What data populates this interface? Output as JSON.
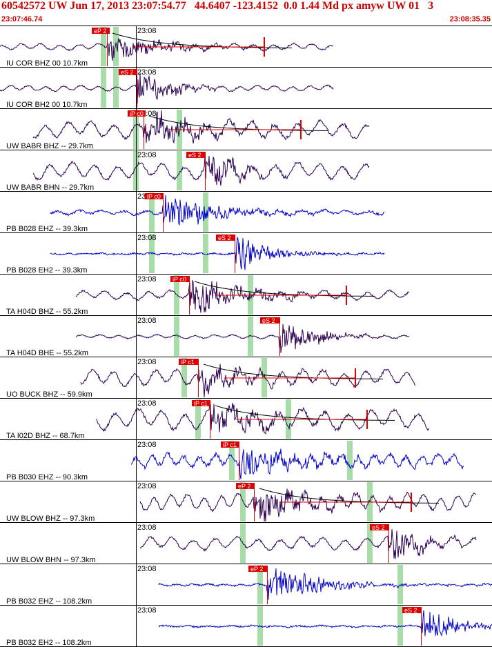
{
  "header": {
    "title": "60542572 UW Jun 17, 2013 23:07:54.77   44.6407 -123.4152  0.0 1.44 Md px amyw UW 01   3",
    "start_time": "23:07:46.74",
    "end_time": "23:08:35.35"
  },
  "colors": {
    "header_text": "#cc0000",
    "pick_box": "#dd0000",
    "pick_line": "#dd0000",
    "phase_band": "#a8dca8",
    "trace_blue": "#0000cc",
    "trace_dark": "#2a0050",
    "coda_fit": "#000000",
    "grid": "#000000"
  },
  "chart_data": {
    "type": "line",
    "title": "60542572 UW Jun 17, 2013 23:07:54.77   44.6407 -123.4152  0.0 1.44 Md px amyw UW 01   3",
    "time_window": [
      "23:07:46.74",
      "23:08:35.35"
    ],
    "minute_tick_label": "23:08",
    "series": [
      {
        "label": "IU COR BHZ 00 10.7km",
        "pick": "eP 2",
        "color": "dark",
        "noise": 0.35,
        "amp": 0.7,
        "coda": true,
        "pick_kind": "P"
      },
      {
        "label": "IU COR BH2 00 10.7km",
        "pick": "eS 2",
        "color": "dark",
        "noise": 0.3,
        "amp": 0.9,
        "coda": false,
        "pick_kind": "S"
      },
      {
        "label": "UW BABR BHZ -- 29.7km",
        "pick": "iP c0",
        "color": "dark",
        "noise": 0.9,
        "amp": 1.0,
        "coda": true,
        "pick_kind": "P"
      },
      {
        "label": "UW BABR BHN -- 29.7km",
        "pick": "eS 2",
        "color": "dark",
        "noise": 0.9,
        "amp": 1.0,
        "coda": false,
        "pick_kind": "S"
      },
      {
        "label": "PB B028 EHZ -- 39.3km",
        "pick": "iP c0",
        "color": "blue",
        "noise": 0.25,
        "amp": 1.0,
        "coda": false,
        "pick_kind": "P"
      },
      {
        "label": "PB B028 EH2 -- 39.3km",
        "pick": "eS 2",
        "color": "blue",
        "noise": 0.08,
        "amp": 1.0,
        "coda": false,
        "pick_kind": "S"
      },
      {
        "label": "TA H04D BHZ -- 55.2km",
        "pick": "iP c0",
        "color": "dark",
        "noise": 0.5,
        "amp": 1.0,
        "coda": true,
        "pick_kind": "P"
      },
      {
        "label": "TA H04D BHE -- 55.2km",
        "pick": "eS 2",
        "color": "dark",
        "noise": 0.2,
        "amp": 1.0,
        "coda": false,
        "pick_kind": "S"
      },
      {
        "label": "UO BUCK BHZ -- 59.9km",
        "pick": "iP c1",
        "color": "dark",
        "noise": 0.9,
        "amp": 0.7,
        "coda": true,
        "pick_kind": "P"
      },
      {
        "label": "TA I02D BHZ -- 68.7km",
        "pick": "iP c1",
        "color": "dark",
        "noise": 1.1,
        "amp": 0.8,
        "coda": true,
        "pick_kind": "P"
      },
      {
        "label": "PB B030 EHZ -- 90.3km",
        "pick": "iP c1",
        "color": "blue",
        "noise": 0.7,
        "amp": 1.0,
        "coda": false,
        "pick_kind": "P"
      },
      {
        "label": "UW BLOW BHZ -- 97.3km",
        "pick": "eP 2",
        "color": "dark",
        "noise": 0.9,
        "amp": 0.9,
        "coda": true,
        "pick_kind": "P"
      },
      {
        "label": "UW BLOW BHN -- 97.3km",
        "pick": "eS 2",
        "color": "dark",
        "noise": 0.7,
        "amp": 0.9,
        "coda": false,
        "pick_kind": "S"
      },
      {
        "label": "PB B032 EHZ -- 108.2km",
        "pick": "eP 2",
        "color": "blue",
        "noise": 0.1,
        "amp": 1.0,
        "coda": false,
        "pick_kind": "P"
      },
      {
        "label": "PB B032 EH2 -- 108.2km",
        "pick": "eS 2",
        "color": "blue",
        "noise": 0.08,
        "amp": 1.0,
        "coda": false,
        "pick_kind": "S"
      }
    ],
    "grid": true
  }
}
